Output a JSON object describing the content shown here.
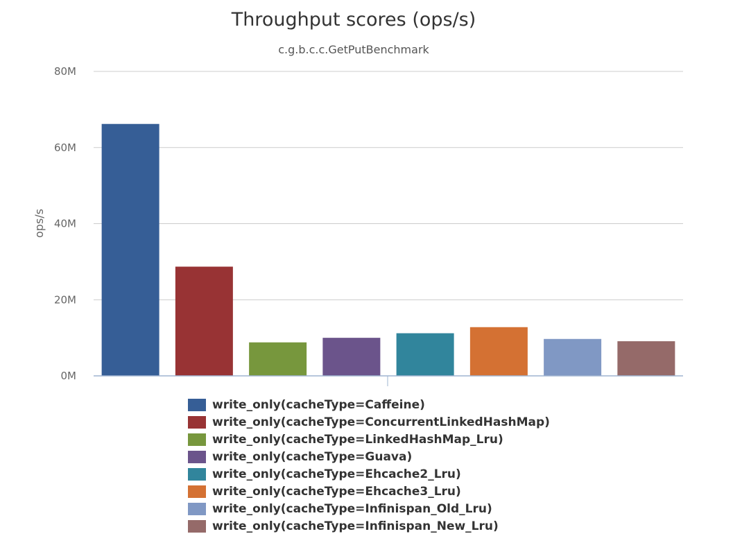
{
  "chart_data": {
    "type": "bar",
    "title": "Throughput scores (ops/s)",
    "subtitle": "c.g.b.c.c.GetPutBenchmark",
    "ylabel": "ops/s",
    "ylim": [
      0,
      80000000
    ],
    "yticks": [
      {
        "value": 0,
        "label": "0M"
      },
      {
        "value": 20000000,
        "label": "20M"
      },
      {
        "value": 40000000,
        "label": "40M"
      },
      {
        "value": 60000000,
        "label": "60M"
      },
      {
        "value": 80000000,
        "label": "80M"
      }
    ],
    "grid": true,
    "legend_position": "bottom",
    "series": [
      {
        "name": "write_only(cacheType=Caffeine)",
        "value": 66200000,
        "color": "#365e96"
      },
      {
        "name": "write_only(cacheType=ConcurrentLinkedHashMap)",
        "value": 28700000,
        "color": "#983334"
      },
      {
        "name": "write_only(cacheType=LinkedHashMap_Lru)",
        "value": 8800000,
        "color": "#77973d"
      },
      {
        "name": "write_only(cacheType=Guava)",
        "value": 10000000,
        "color": "#6b548b"
      },
      {
        "name": "write_only(cacheType=Ehcache2_Lru)",
        "value": 11200000,
        "color": "#31859c"
      },
      {
        "name": "write_only(cacheType=Ehcache3_Lru)",
        "value": 12800000,
        "color": "#d47133"
      },
      {
        "name": "write_only(cacheType=Infinispan_Old_Lru)",
        "value": 9700000,
        "color": "#8098c4"
      },
      {
        "name": "write_only(cacheType=Infinispan_New_Lru)",
        "value": 9100000,
        "color": "#956a69"
      }
    ]
  }
}
